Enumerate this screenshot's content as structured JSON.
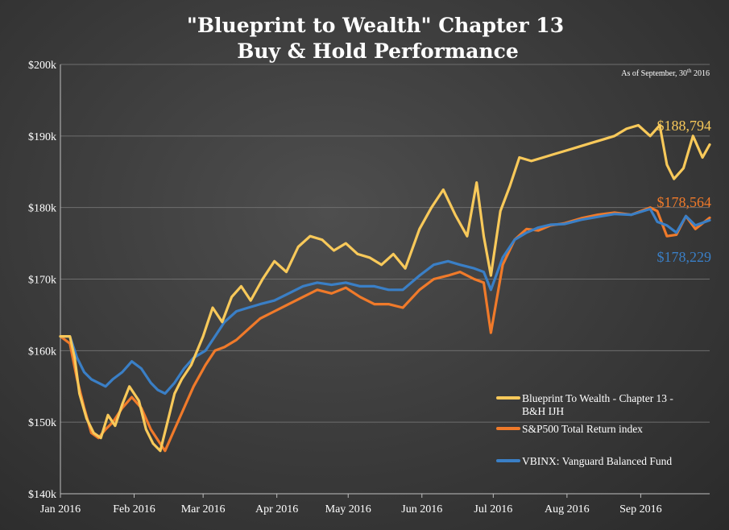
{
  "chart_data": {
    "type": "line",
    "title_lines": [
      "\"Blueprint to Wealth\" Chapter 13",
      "Buy & Hold Performance"
    ],
    "as_of": {
      "prefix": "As of September, 30",
      "sup": "th",
      "suffix": " 2016"
    },
    "x_tick_labels": [
      "Jan 2016",
      "Feb 2016",
      "Mar 2016",
      "Apr 2016",
      "May 2016",
      "Jun 2016",
      "Jul 2016",
      "Aug 2016",
      "Sep 2016"
    ],
    "y_tick_values": [
      140000,
      150000,
      160000,
      170000,
      180000,
      190000,
      200000
    ],
    "y_tick_labels": [
      "$140k",
      "$150k",
      "$160k",
      "$170k",
      "$180k",
      "$190k",
      "$200k"
    ],
    "ylim": [
      140000,
      200000
    ],
    "xlim": [
      "2016-01-01",
      "2016-09-30"
    ],
    "grid": true,
    "legend_position": "bottom-right",
    "series": [
      {
        "name": "Blueprint To Wealth - Chapter 13 -\nB&H IJH",
        "color": "#f8c95a",
        "end_label": "$188,794",
        "dates": [
          "2016-01-01",
          "2016-01-05",
          "2016-01-07",
          "2016-01-09",
          "2016-01-12",
          "2016-01-15",
          "2016-01-18",
          "2016-01-21",
          "2016-01-24",
          "2016-01-27",
          "2016-01-30",
          "2016-02-03",
          "2016-02-06",
          "2016-02-09",
          "2016-02-12",
          "2016-02-15",
          "2016-02-18",
          "2016-02-21",
          "2016-02-25",
          "2016-03-01",
          "2016-03-05",
          "2016-03-09",
          "2016-03-13",
          "2016-03-17",
          "2016-03-21",
          "2016-03-26",
          "2016-03-31",
          "2016-04-05",
          "2016-04-10",
          "2016-04-15",
          "2016-04-20",
          "2016-04-25",
          "2016-04-30",
          "2016-05-05",
          "2016-05-10",
          "2016-05-15",
          "2016-05-20",
          "2016-05-25",
          "2016-05-31",
          "2016-06-05",
          "2016-06-10",
          "2016-06-15",
          "2016-06-20",
          "2016-06-24",
          "2016-06-27",
          "2016-06-30",
          "2016-07-04",
          "2016-07-08",
          "2016-07-12",
          "2016-07-17",
          "2016-07-22",
          "2016-07-27",
          "2016-08-01",
          "2016-08-06",
          "2016-08-11",
          "2016-08-16",
          "2016-08-21",
          "2016-08-26",
          "2016-08-31",
          "2016-09-05",
          "2016-09-09",
          "2016-09-12",
          "2016-09-15",
          "2016-09-19",
          "2016-09-23",
          "2016-09-27",
          "2016-09-30"
        ],
        "values": [
          162000,
          162000,
          159000,
          154000,
          150500,
          148500,
          147800,
          151000,
          149500,
          152500,
          155000,
          153000,
          149000,
          147000,
          146000,
          150000,
          154000,
          156000,
          158000,
          162000,
          166000,
          164000,
          167500,
          169000,
          167000,
          170000,
          172500,
          171000,
          174500,
          176000,
          175500,
          174000,
          175000,
          173500,
          173000,
          172000,
          173500,
          171500,
          177000,
          180000,
          182500,
          179000,
          176000,
          183500,
          176000,
          170500,
          179500,
          183000,
          187000,
          186500,
          187000,
          187500,
          188000,
          188500,
          189000,
          189500,
          190000,
          191000,
          191500,
          190000,
          191500,
          186000,
          184000,
          185500,
          190000,
          187000,
          188794
        ]
      },
      {
        "name": "S&P500 Total Return index",
        "color": "#f07a2a",
        "end_label": "$178,564",
        "dates": [
          "2016-01-01",
          "2016-01-05",
          "2016-01-08",
          "2016-01-11",
          "2016-01-14",
          "2016-01-17",
          "2016-01-20",
          "2016-01-23",
          "2016-01-27",
          "2016-01-31",
          "2016-02-04",
          "2016-02-08",
          "2016-02-11",
          "2016-02-14",
          "2016-02-18",
          "2016-02-22",
          "2016-02-26",
          "2016-03-02",
          "2016-03-06",
          "2016-03-10",
          "2016-03-15",
          "2016-03-20",
          "2016-03-25",
          "2016-03-31",
          "2016-04-06",
          "2016-04-12",
          "2016-04-18",
          "2016-04-24",
          "2016-04-30",
          "2016-05-06",
          "2016-05-12",
          "2016-05-18",
          "2016-05-24",
          "2016-05-31",
          "2016-06-06",
          "2016-06-12",
          "2016-06-17",
          "2016-06-23",
          "2016-06-27",
          "2016-06-30",
          "2016-07-05",
          "2016-07-10",
          "2016-07-15",
          "2016-07-20",
          "2016-07-25",
          "2016-07-31",
          "2016-08-07",
          "2016-08-14",
          "2016-08-21",
          "2016-08-28",
          "2016-09-05",
          "2016-09-08",
          "2016-09-12",
          "2016-09-16",
          "2016-09-20",
          "2016-09-24",
          "2016-09-30"
        ],
        "values": [
          162000,
          161000,
          156000,
          152000,
          148500,
          147800,
          149000,
          150000,
          152000,
          153500,
          152000,
          149000,
          147500,
          146000,
          149000,
          152000,
          155000,
          158000,
          160000,
          160500,
          161500,
          163000,
          164500,
          165500,
          166500,
          167500,
          168500,
          168000,
          168800,
          167500,
          166500,
          166500,
          166000,
          168500,
          170000,
          170500,
          171000,
          170000,
          169500,
          162500,
          172000,
          175500,
          177000,
          176800,
          177500,
          177800,
          178500,
          179000,
          179300,
          179000,
          180000,
          179500,
          176000,
          176200,
          178800,
          177000,
          178564
        ]
      },
      {
        "name": "VBINX: Vanguard Balanced Fund",
        "color": "#3a7fc6",
        "end_label": "$178,229",
        "dates": [
          "2016-01-01",
          "2016-01-05",
          "2016-01-08",
          "2016-01-11",
          "2016-01-14",
          "2016-01-17",
          "2016-01-20",
          "2016-01-23",
          "2016-01-27",
          "2016-01-31",
          "2016-02-04",
          "2016-02-08",
          "2016-02-11",
          "2016-02-14",
          "2016-02-18",
          "2016-02-22",
          "2016-02-26",
          "2016-03-02",
          "2016-03-06",
          "2016-03-10",
          "2016-03-15",
          "2016-03-20",
          "2016-03-25",
          "2016-03-31",
          "2016-04-06",
          "2016-04-12",
          "2016-04-18",
          "2016-04-24",
          "2016-04-30",
          "2016-05-06",
          "2016-05-12",
          "2016-05-18",
          "2016-05-24",
          "2016-05-31",
          "2016-06-06",
          "2016-06-12",
          "2016-06-17",
          "2016-06-23",
          "2016-06-27",
          "2016-06-30",
          "2016-07-05",
          "2016-07-10",
          "2016-07-15",
          "2016-07-20",
          "2016-07-25",
          "2016-07-31",
          "2016-08-07",
          "2016-08-14",
          "2016-08-21",
          "2016-08-28",
          "2016-09-05",
          "2016-09-08",
          "2016-09-12",
          "2016-09-16",
          "2016-09-20",
          "2016-09-24",
          "2016-09-30"
        ],
        "values": [
          162000,
          162000,
          159000,
          157000,
          156000,
          155500,
          155000,
          156000,
          157000,
          158500,
          157500,
          155500,
          154500,
          154000,
          155500,
          157500,
          159000,
          160000,
          162000,
          164000,
          165500,
          166000,
          166500,
          167000,
          168000,
          169000,
          169500,
          169200,
          169500,
          169000,
          169000,
          168500,
          168500,
          170500,
          172000,
          172500,
          172000,
          171500,
          171000,
          168500,
          173000,
          175500,
          176500,
          177200,
          177600,
          177700,
          178300,
          178700,
          179100,
          179000,
          179800,
          178000,
          177500,
          176500,
          178800,
          177500,
          178229
        ]
      }
    ]
  }
}
